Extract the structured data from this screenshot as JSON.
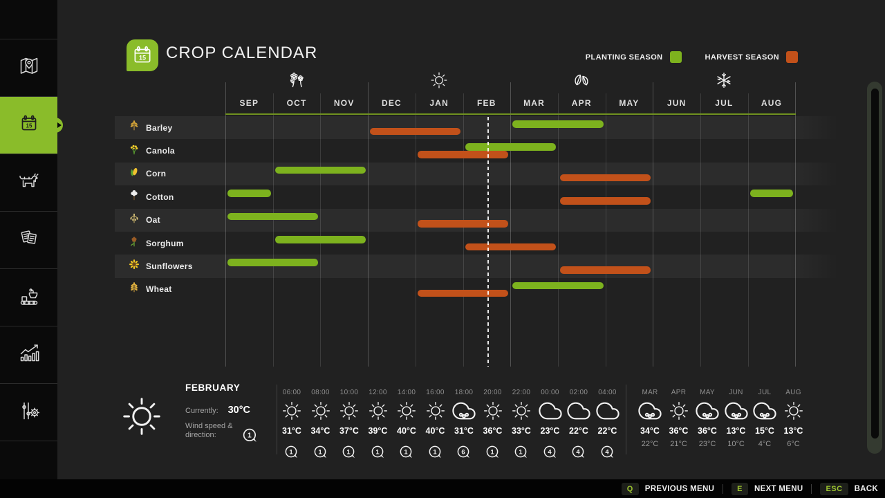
{
  "app": {
    "title": "CROP CALENDAR"
  },
  "legend": {
    "planting_label": "PLANTING SEASON",
    "harvest_label": "HARVEST SEASON",
    "planting_color": "#7db21e",
    "harvest_color": "#c2511a"
  },
  "chart_data": {
    "type": "gantt",
    "months": [
      "SEP",
      "OCT",
      "NOV",
      "DEC",
      "JAN",
      "FEB",
      "MAR",
      "APR",
      "MAY",
      "JUN",
      "JUL",
      "AUG"
    ],
    "season_icons": [
      {
        "icon": "flowers",
        "month": "OCT"
      },
      {
        "icon": "sun",
        "month": "JAN"
      },
      {
        "icon": "leaves",
        "month": "APR"
      },
      {
        "icon": "snowflake",
        "month": "JUL"
      }
    ],
    "current_time_marker": {
      "month": "FEB",
      "fraction": 0.52
    },
    "rows": [
      {
        "crop": "Barley",
        "icon": "barley",
        "bars": [
          {
            "kind": "harvest",
            "from": "DEC",
            "to": "JAN"
          },
          {
            "kind": "planting",
            "from": "MAR",
            "to": "APR"
          }
        ]
      },
      {
        "crop": "Canola",
        "icon": "canola",
        "bars": [
          {
            "kind": "planting",
            "from": "FEB",
            "to": "MAR"
          },
          {
            "kind": "harvest",
            "from": "JAN",
            "to": "FEB"
          }
        ]
      },
      {
        "crop": "Corn",
        "icon": "corn",
        "bars": [
          {
            "kind": "planting",
            "from": "OCT",
            "to": "NOV"
          },
          {
            "kind": "harvest",
            "from": "APR",
            "to": "MAY"
          }
        ]
      },
      {
        "crop": "Cotton",
        "icon": "cotton",
        "bars": [
          {
            "kind": "planting",
            "from": "SEP",
            "to": "SEP"
          },
          {
            "kind": "harvest",
            "from": "APR",
            "to": "MAY"
          },
          {
            "kind": "planting",
            "from": "AUG",
            "to": "AUG"
          }
        ]
      },
      {
        "crop": "Oat",
        "icon": "oat",
        "bars": [
          {
            "kind": "planting",
            "from": "SEP",
            "to": "OCT"
          },
          {
            "kind": "harvest",
            "from": "JAN",
            "to": "FEB"
          }
        ]
      },
      {
        "crop": "Sorghum",
        "icon": "sorghum",
        "bars": [
          {
            "kind": "planting",
            "from": "OCT",
            "to": "NOV"
          },
          {
            "kind": "harvest",
            "from": "FEB",
            "to": "MAR"
          }
        ]
      },
      {
        "crop": "Sunflowers",
        "icon": "sunflower",
        "bars": [
          {
            "kind": "planting",
            "from": "SEP",
            "to": "OCT"
          },
          {
            "kind": "harvest",
            "from": "APR",
            "to": "MAY"
          }
        ]
      },
      {
        "crop": "Wheat",
        "icon": "wheat",
        "bars": [
          {
            "kind": "harvest",
            "from": "JAN",
            "to": "FEB"
          },
          {
            "kind": "planting",
            "from": "MAR",
            "to": "APR"
          }
        ]
      }
    ]
  },
  "weather": {
    "current": {
      "month": "FEBRUARY",
      "currently_label": "Currently:",
      "temperature": "30°C",
      "wind_label": "Wind speed & direction:",
      "wind": "1",
      "icon": "sun"
    },
    "hourly": [
      {
        "time": "06:00",
        "icon": "sun",
        "temp": "31°C",
        "wind": "1"
      },
      {
        "time": "08:00",
        "icon": "sun",
        "temp": "34°C",
        "wind": "1"
      },
      {
        "time": "10:00",
        "icon": "sun",
        "temp": "37°C",
        "wind": "1"
      },
      {
        "time": "12:00",
        "icon": "sun",
        "temp": "39°C",
        "wind": "1"
      },
      {
        "time": "14:00",
        "icon": "sun",
        "temp": "40°C",
        "wind": "1"
      },
      {
        "time": "16:00",
        "icon": "sun",
        "temp": "40°C",
        "wind": "1"
      },
      {
        "time": "18:00",
        "icon": "rain",
        "temp": "31°C",
        "wind": "6"
      },
      {
        "time": "20:00",
        "icon": "sun",
        "temp": "36°C",
        "wind": "1"
      },
      {
        "time": "22:00",
        "icon": "sun",
        "temp": "33°C",
        "wind": "1"
      },
      {
        "time": "00:00",
        "icon": "cloud",
        "temp": "23°C",
        "wind": "4"
      },
      {
        "time": "02:00",
        "icon": "cloud",
        "temp": "22°C",
        "wind": "4"
      },
      {
        "time": "04:00",
        "icon": "cloud",
        "temp": "22°C",
        "wind": "4"
      }
    ],
    "monthly": [
      {
        "month": "MAR",
        "icon": "rain",
        "high": "34°C",
        "low": "22°C"
      },
      {
        "month": "APR",
        "icon": "sun",
        "high": "36°C",
        "low": "21°C"
      },
      {
        "month": "MAY",
        "icon": "rain",
        "high": "36°C",
        "low": "23°C"
      },
      {
        "month": "JUN",
        "icon": "rain",
        "high": "13°C",
        "low": "10°C"
      },
      {
        "month": "JUL",
        "icon": "rain",
        "high": "15°C",
        "low": "4°C"
      },
      {
        "month": "AUG",
        "icon": "sun",
        "high": "13°C",
        "low": "6°C"
      }
    ]
  },
  "sidebar": {
    "items": [
      {
        "icon": "map",
        "active": false
      },
      {
        "icon": "calendar",
        "active": true
      },
      {
        "icon": "animals",
        "active": false
      },
      {
        "icon": "prices",
        "active": false
      },
      {
        "icon": "production",
        "active": false
      },
      {
        "icon": "statistics",
        "active": false
      },
      {
        "icon": "settings",
        "active": false
      }
    ]
  },
  "footer": {
    "shortcuts": [
      {
        "key": "Q",
        "label": "PREVIOUS MENU"
      },
      {
        "key": "E",
        "label": "NEXT MENU"
      },
      {
        "key": "ESC",
        "label": "BACK"
      }
    ]
  }
}
